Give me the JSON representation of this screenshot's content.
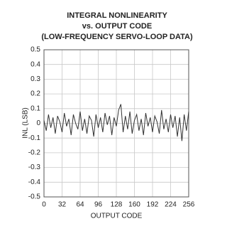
{
  "chart_data": {
    "type": "line",
    "title": [
      "INTEGRAL NONLINEARITY",
      "vs. OUTPUT CODE",
      "(LOW-FREQUENCY SERVO-LOOP DATA)"
    ],
    "x_label": "OUTPUT CODE",
    "y_label": "INL (LSB)",
    "x": [
      0,
      4,
      8,
      12,
      16,
      20,
      24,
      28,
      32,
      36,
      40,
      44,
      48,
      52,
      56,
      60,
      64,
      68,
      72,
      76,
      80,
      84,
      88,
      92,
      96,
      100,
      104,
      108,
      112,
      116,
      120,
      124,
      128,
      132,
      136,
      140,
      144,
      148,
      152,
      156,
      160,
      164,
      168,
      172,
      176,
      180,
      184,
      188,
      192,
      196,
      200,
      204,
      208,
      212,
      216,
      220,
      224,
      228,
      232,
      236,
      240,
      244,
      248,
      252,
      256
    ],
    "series": [
      {
        "name": "INL",
        "color": "#333333",
        "values": [
          0.02,
          -0.05,
          0.06,
          -0.03,
          0.04,
          -0.07,
          0.05,
          0.01,
          -0.06,
          0.07,
          -0.02,
          0.03,
          -0.08,
          0.06,
          0.0,
          -0.04,
          0.08,
          -0.05,
          0.03,
          -0.07,
          0.05,
          0.02,
          -0.09,
          0.06,
          -0.03,
          0.04,
          -0.06,
          0.07,
          -0.01,
          0.05,
          -0.08,
          0.04,
          -0.02,
          0.09,
          0.13,
          -0.06,
          0.05,
          -0.04,
          0.08,
          -0.07,
          0.02,
          0.06,
          -0.05,
          0.03,
          -0.08,
          0.07,
          -0.02,
          0.04,
          -0.06,
          0.05,
          0.01,
          -0.07,
          0.09,
          -0.04,
          0.03,
          -0.06,
          0.06,
          -0.03,
          0.05,
          -0.09,
          0.04,
          -0.12,
          0.06,
          -0.05,
          0.08
        ]
      }
    ],
    "xlim": [
      0,
      256
    ],
    "xticks": [
      0,
      32,
      64,
      96,
      128,
      160,
      192,
      224,
      256
    ],
    "ylim": [
      -0.5,
      0.5
    ],
    "yticks": [
      -0.5,
      -0.4,
      -0.3,
      -0.2,
      -0.1,
      0,
      0.1,
      0.2,
      0.3,
      0.4,
      0.5
    ],
    "grid": true
  }
}
